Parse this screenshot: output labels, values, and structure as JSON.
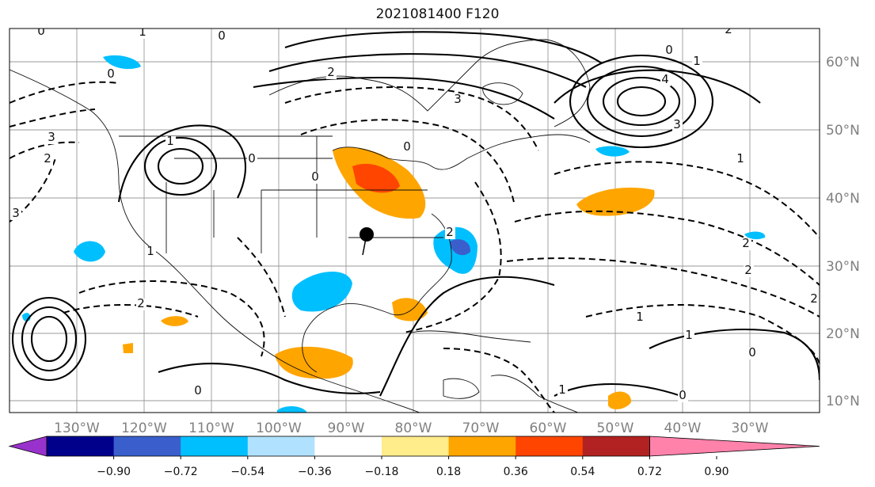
{
  "title": "2021081400 F120",
  "lon_ticks": [
    "130°W",
    "120°W",
    "110°W",
    "100°W",
    "90°W",
    "80°W",
    "70°W",
    "60°W",
    "50°W",
    "40°W",
    "30°W"
  ],
  "lat_ticks": [
    "60°N",
    "50°N",
    "40°N",
    "30°N",
    "20°N",
    "10°N"
  ],
  "colorbar": {
    "tick_labels": [
      "−0.90",
      "−0.72",
      "−0.54",
      "−0.36",
      "−0.18",
      "0.18",
      "0.36",
      "0.54",
      "0.72",
      "0.90"
    ],
    "colors": [
      "#9932cc",
      "#00008b",
      "#3a5fcd",
      "#00bfff",
      "#b0e2ff",
      "#ffffff",
      "#ffec8b",
      "#ffa500",
      "#ff4500",
      "#b22222",
      "#ff82ab"
    ]
  },
  "contour_labels": [
    "0",
    "0",
    "0",
    "0",
    "0",
    "0",
    "0",
    "0",
    "0",
    "0",
    "1",
    "1",
    "1",
    "1",
    "1",
    "1",
    "1",
    "1",
    "2",
    "2",
    "2",
    "2",
    "2",
    "2",
    "2",
    "2",
    "3",
    "3",
    "3",
    "3",
    "4"
  ],
  "marker": "storm-center-dot"
}
